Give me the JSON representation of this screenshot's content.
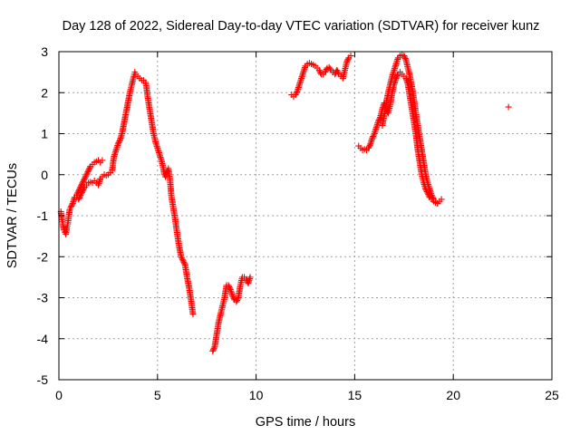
{
  "chart_data": {
    "type": "scatter",
    "title": "Day 128 of 2022, Sidereal Day-to-day VTEC variation (SDTVAR) for receiver kunz",
    "xlabel": "GPS time / hours",
    "ylabel": "SDTVAR / TECUs",
    "xlim": [
      0,
      25
    ],
    "ylim": [
      -5,
      3
    ],
    "xticks": [
      0,
      5,
      10,
      15,
      20,
      25
    ],
    "yticks": [
      -5,
      -4,
      -3,
      -2,
      -1,
      0,
      1,
      2,
      3
    ],
    "xtick_labels": [
      "0",
      "5",
      "10",
      "15",
      "20",
      "25"
    ],
    "ytick_labels": [
      "-5",
      "-4",
      "-3",
      "-2",
      "-1",
      "0",
      "1",
      "2",
      "3"
    ],
    "grid": true,
    "marker": "plus",
    "color": "#ff0000",
    "series": [
      {
        "segments": [
          [
            [
              0.1,
              -0.9
            ],
            [
              0.15,
              -1.1
            ],
            [
              0.2,
              -1.2
            ],
            [
              0.25,
              -1.35
            ],
            [
              0.3,
              -1.4
            ],
            [
              0.35,
              -1.45
            ],
            [
              0.4,
              -1.3
            ],
            [
              0.45,
              -1.2
            ],
            [
              0.5,
              -1.0
            ],
            [
              0.55,
              -0.85
            ],
            [
              0.6,
              -0.8
            ],
            [
              0.7,
              -0.7
            ],
            [
              0.8,
              -0.55
            ],
            [
              0.9,
              -0.5
            ],
            [
              1.0,
              -0.4
            ],
            [
              1.1,
              -0.3
            ],
            [
              1.2,
              -0.2
            ],
            [
              1.3,
              -0.1
            ],
            [
              1.4,
              0.0
            ],
            [
              1.5,
              0.1
            ],
            [
              1.6,
              0.2
            ],
            [
              1.7,
              0.25
            ],
            [
              1.8,
              0.3
            ],
            [
              1.9,
              0.32
            ],
            [
              2.0,
              0.35
            ],
            [
              2.1,
              0.3
            ],
            [
              2.2,
              0.35
            ]
          ],
          [
            [
              1.0,
              -0.6
            ],
            [
              1.1,
              -0.5
            ],
            [
              1.2,
              -0.4
            ],
            [
              1.3,
              -0.3
            ],
            [
              1.4,
              -0.25
            ],
            [
              1.5,
              -0.2
            ],
            [
              1.6,
              -0.18
            ],
            [
              1.7,
              -0.2
            ],
            [
              1.8,
              -0.15
            ],
            [
              1.9,
              -0.2
            ],
            [
              2.0,
              -0.25
            ],
            [
              2.1,
              -0.1
            ],
            [
              2.2,
              -0.05
            ],
            [
              2.3,
              0.0
            ],
            [
              2.4,
              -0.02
            ],
            [
              2.5,
              0.0
            ],
            [
              2.6,
              0.05
            ],
            [
              2.7,
              0.1
            ],
            [
              2.75,
              0.3
            ],
            [
              2.8,
              0.45
            ],
            [
              2.9,
              0.6
            ],
            [
              3.0,
              0.75
            ],
            [
              3.1,
              0.85
            ],
            [
              3.2,
              1.0
            ],
            [
              3.3,
              1.25
            ],
            [
              3.4,
              1.5
            ],
            [
              3.5,
              1.75
            ],
            [
              3.6,
              2.0
            ],
            [
              3.7,
              2.2
            ],
            [
              3.8,
              2.4
            ],
            [
              3.85,
              2.5
            ],
            [
              3.9,
              2.45
            ],
            [
              4.0,
              2.4
            ],
            [
              4.1,
              2.35
            ],
            [
              4.2,
              2.3
            ],
            [
              4.3,
              2.3
            ],
            [
              4.4,
              2.25
            ],
            [
              4.45,
              2.1
            ],
            [
              4.5,
              1.9
            ],
            [
              4.6,
              1.6
            ],
            [
              4.7,
              1.3
            ],
            [
              4.8,
              1.0
            ],
            [
              4.9,
              0.8
            ],
            [
              5.0,
              0.65
            ],
            [
              5.1,
              0.5
            ],
            [
              5.2,
              0.35
            ],
            [
              5.3,
              0.15
            ],
            [
              5.35,
              0.0
            ],
            [
              5.4,
              -0.05
            ],
            [
              5.5,
              0.1
            ],
            [
              5.55,
              0.15
            ],
            [
              5.6,
              0.0
            ],
            [
              5.65,
              -0.2
            ],
            [
              5.7,
              -0.5
            ],
            [
              5.8,
              -0.8
            ],
            [
              5.9,
              -1.1
            ],
            [
              6.0,
              -1.45
            ],
            [
              6.1,
              -1.75
            ],
            [
              6.2,
              -2.0
            ],
            [
              6.3,
              -2.1
            ],
            [
              6.4,
              -2.2
            ],
            [
              6.5,
              -2.5
            ],
            [
              6.6,
              -2.75
            ],
            [
              6.7,
              -3.05
            ],
            [
              6.8,
              -3.4
            ]
          ],
          [
            [
              7.8,
              -4.3
            ],
            [
              7.9,
              -4.2
            ],
            [
              8.0,
              -3.9
            ],
            [
              8.1,
              -3.6
            ],
            [
              8.2,
              -3.4
            ],
            [
              8.3,
              -3.2
            ],
            [
              8.4,
              -3.0
            ],
            [
              8.5,
              -2.7
            ],
            [
              8.6,
              -2.7
            ],
            [
              8.7,
              -2.8
            ],
            [
              8.8,
              -2.95
            ],
            [
              8.9,
              -3.05
            ],
            [
              9.0,
              -3.1
            ],
            [
              9.1,
              -3.0
            ],
            [
              9.2,
              -2.7
            ],
            [
              9.3,
              -2.5
            ],
            [
              9.4,
              -2.5
            ],
            [
              9.5,
              -2.55
            ],
            [
              9.6,
              -2.65
            ],
            [
              9.7,
              -2.5
            ]
          ],
          [
            [
              11.8,
              1.95
            ],
            [
              11.9,
              1.9
            ],
            [
              12.0,
              1.95
            ],
            [
              12.1,
              2.05
            ],
            [
              12.2,
              2.2
            ],
            [
              12.3,
              2.35
            ],
            [
              12.4,
              2.5
            ],
            [
              12.5,
              2.65
            ],
            [
              12.6,
              2.7
            ],
            [
              12.7,
              2.72
            ],
            [
              12.8,
              2.7
            ],
            [
              12.9,
              2.68
            ],
            [
              13.0,
              2.65
            ],
            [
              13.1,
              2.6
            ],
            [
              13.2,
              2.55
            ],
            [
              13.3,
              2.45
            ],
            [
              13.4,
              2.45
            ],
            [
              13.5,
              2.5
            ],
            [
              13.6,
              2.6
            ],
            [
              13.7,
              2.62
            ],
            [
              13.8,
              2.55
            ],
            [
              13.9,
              2.5
            ],
            [
              14.0,
              2.45
            ],
            [
              14.1,
              2.55
            ],
            [
              14.2,
              2.45
            ],
            [
              14.3,
              2.4
            ],
            [
              14.4,
              2.35
            ],
            [
              14.5,
              2.55
            ],
            [
              14.6,
              2.75
            ],
            [
              14.7,
              2.85
            ],
            [
              14.8,
              2.9
            ]
          ],
          [
            [
              15.2,
              0.7
            ],
            [
              15.3,
              0.65
            ],
            [
              15.4,
              0.6
            ],
            [
              15.5,
              0.62
            ],
            [
              15.6,
              0.6
            ],
            [
              15.7,
              0.65
            ],
            [
              15.8,
              0.75
            ],
            [
              15.9,
              0.9
            ],
            [
              16.0,
              1.0
            ],
            [
              16.1,
              1.15
            ],
            [
              16.2,
              1.3
            ],
            [
              16.3,
              1.4
            ],
            [
              16.4,
              1.6
            ],
            [
              16.5,
              1.75
            ],
            [
              16.6,
              1.6
            ],
            [
              16.7,
              1.5
            ],
            [
              16.8,
              1.7
            ],
            [
              16.9,
              2.0
            ],
            [
              17.0,
              2.2
            ],
            [
              17.1,
              2.35
            ],
            [
              17.2,
              2.45
            ],
            [
              17.3,
              2.5
            ],
            [
              17.4,
              2.45
            ],
            [
              17.5,
              2.4
            ],
            [
              17.6,
              2.35
            ],
            [
              17.7,
              2.2
            ],
            [
              17.8,
              1.9
            ],
            [
              17.9,
              1.6
            ],
            [
              18.0,
              1.3
            ],
            [
              18.1,
              1.0
            ],
            [
              18.2,
              0.6
            ],
            [
              18.3,
              0.3
            ],
            [
              18.4,
              0.0
            ],
            [
              18.5,
              -0.2
            ],
            [
              18.6,
              -0.35
            ],
            [
              18.7,
              -0.45
            ],
            [
              18.8,
              -0.55
            ],
            [
              18.9,
              -0.6
            ],
            [
              19.0,
              -0.65
            ],
            [
              19.1,
              -0.68
            ],
            [
              19.2,
              -0.7
            ],
            [
              19.3,
              -0.65
            ],
            [
              19.4,
              -0.6
            ]
          ],
          [
            [
              16.4,
              1.2
            ],
            [
              16.5,
              1.45
            ],
            [
              16.6,
              1.75
            ],
            [
              16.7,
              2.0
            ],
            [
              16.8,
              2.2
            ],
            [
              16.9,
              2.4
            ],
            [
              17.0,
              2.55
            ],
            [
              17.1,
              2.7
            ],
            [
              17.2,
              2.85
            ],
            [
              17.3,
              2.9
            ],
            [
              17.4,
              2.92
            ],
            [
              17.5,
              2.9
            ],
            [
              17.6,
              2.8
            ],
            [
              17.7,
              2.6
            ],
            [
              17.8,
              2.4
            ],
            [
              17.9,
              2.15
            ],
            [
              18.0,
              1.85
            ],
            [
              18.1,
              1.5
            ],
            [
              18.2,
              1.2
            ],
            [
              18.3,
              0.9
            ],
            [
              18.4,
              0.6
            ],
            [
              18.5,
              0.3
            ],
            [
              18.6,
              0.0
            ],
            [
              18.7,
              -0.2
            ],
            [
              18.8,
              -0.35
            ],
            [
              18.9,
              -0.5
            ],
            [
              19.0,
              -0.6
            ],
            [
              19.1,
              -0.65
            ],
            [
              19.2,
              -0.7
            ]
          ],
          [
            [
              22.8,
              1.65
            ]
          ]
        ]
      }
    ]
  }
}
